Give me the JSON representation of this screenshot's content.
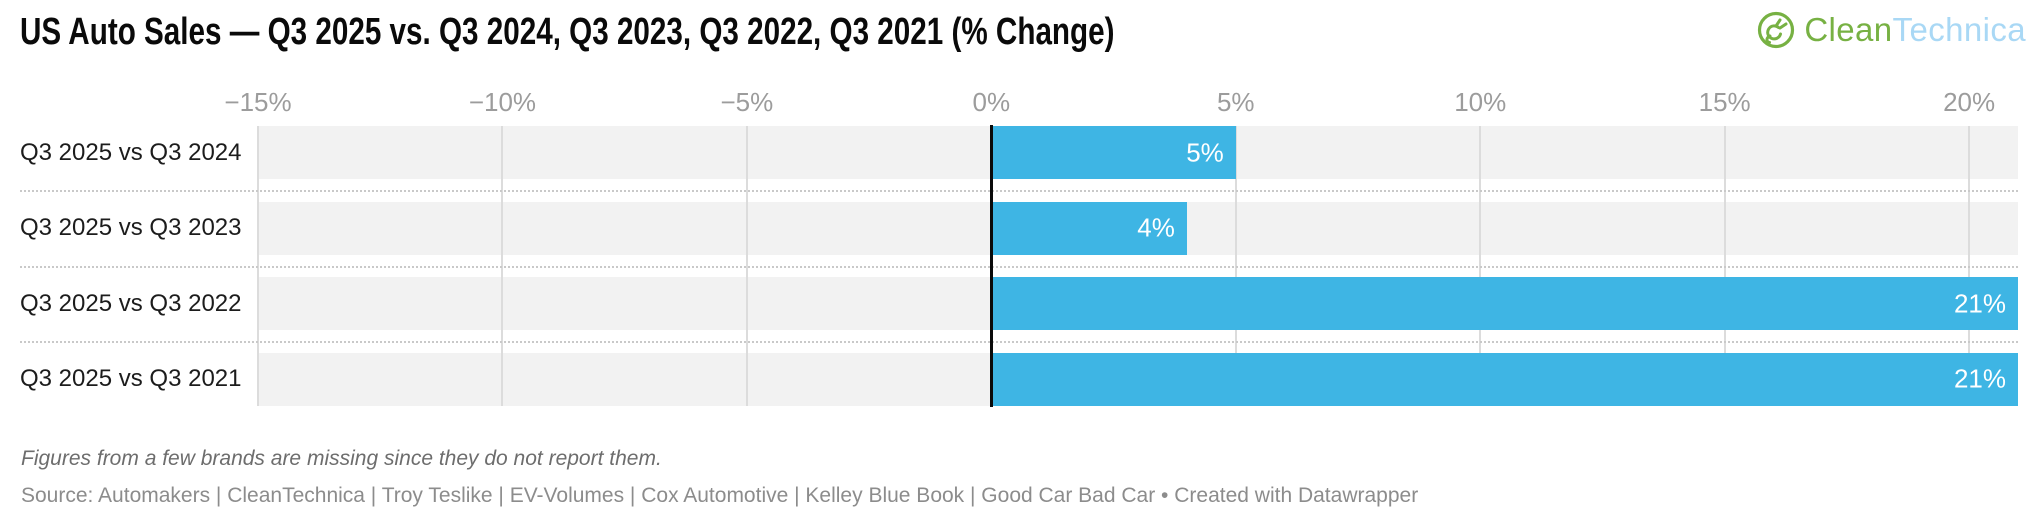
{
  "header": {
    "logo": {
      "clean": "Clean",
      "technica": "Technica"
    }
  },
  "colors": {
    "bar_blue": "#3eb5e4",
    "track_gray": "#f2f2f2",
    "gridline_gray": "#dcdcdc",
    "zero_line_black": "#0a0a0a",
    "logo_green": "#77b143",
    "logo_light_blue": "#a9d8f5"
  },
  "chart_data": {
    "type": "bar",
    "orientation": "horizontal",
    "title": "US Auto Sales — Q3 2025 vs. Q3 2024, Q3 2023, Q3 2022, Q3 2021 (% Change)",
    "categories": [
      "Q3 2025 vs Q3 2024",
      "Q3 2025 vs Q3 2023",
      "Q3 2025 vs Q3 2022",
      "Q3 2025 vs Q3 2021"
    ],
    "values": [
      5,
      4,
      21,
      21
    ],
    "value_labels": [
      "5%",
      "4%",
      "21%",
      "21%"
    ],
    "xlim": [
      -15,
      21
    ],
    "grid": true,
    "legend": "none",
    "bar_color": "#3eb5e4",
    "track_color": "#f2f2f2",
    "axis_ticks": [
      {
        "label": "−15%",
        "value": -15
      },
      {
        "label": "−10%",
        "value": -10
      },
      {
        "label": "−5%",
        "value": -5
      },
      {
        "label": "0%",
        "value": 0
      },
      {
        "label": "5%",
        "value": 5
      },
      {
        "label": "10%",
        "value": 10
      },
      {
        "label": "15%",
        "value": 15
      },
      {
        "label": "20%",
        "value": 20
      }
    ]
  },
  "footer": {
    "note": "Figures from a few brands are missing since they do not report them.",
    "source": "Source: Automakers | CleanTechnica | Troy Teslike | EV-Volumes | Cox Automotive | Kelley Blue Book | Good Car Bad Car • Created with Datawrapper"
  }
}
